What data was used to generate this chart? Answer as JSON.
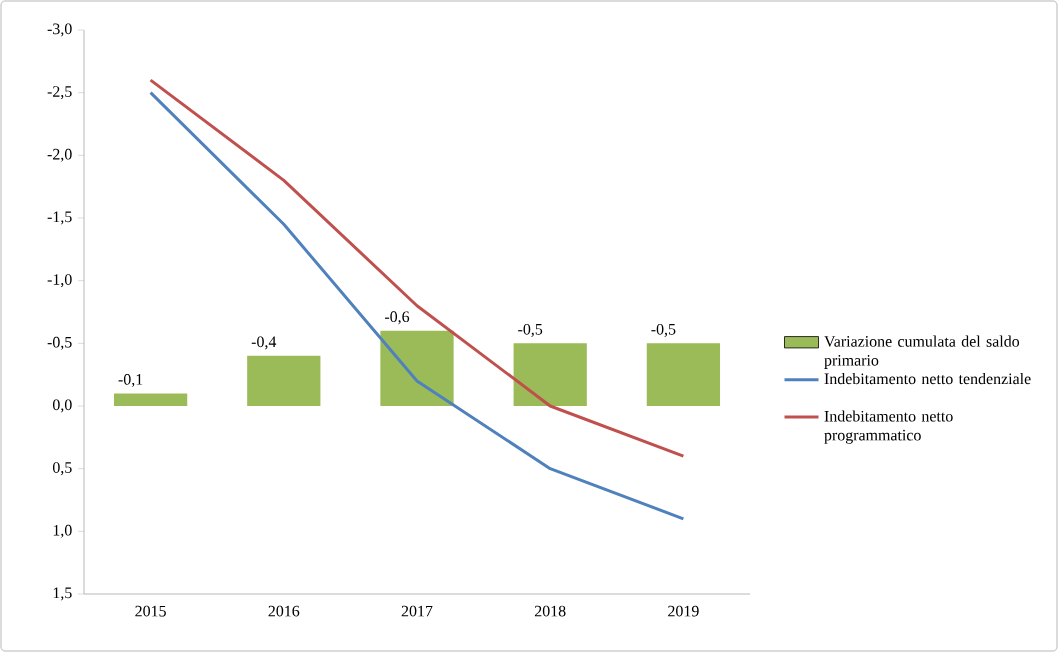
{
  "chart_data": {
    "type": "bar",
    "categories": [
      "2015",
      "2016",
      "2017",
      "2018",
      "2019"
    ],
    "series": [
      {
        "name": "Variazione cumulata del saldo primario",
        "color": "#9bbb59",
        "values": [
          -0.1,
          -0.4,
          -0.6,
          -0.5,
          -0.5
        ],
        "value_labels": [
          "-0,1",
          "-0,4",
          "-0,6",
          "-0,5",
          "-0,5"
        ]
      },
      {
        "name": "Indebitamento netto tendenziale",
        "type": "line",
        "color": "#4f81bd",
        "values": [
          -2.5,
          -1.45,
          -0.2,
          0.5,
          0.9
        ]
      },
      {
        "name": "Indebitamento netto programmatico",
        "type": "line",
        "color": "#c0504d",
        "values": [
          -2.6,
          -1.8,
          -0.8,
          0.0,
          0.4
        ]
      }
    ],
    "ylim": [
      1.5,
      -3.0
    ],
    "yticks": [
      {
        "value": -3.0,
        "label": "-3,0"
      },
      {
        "value": -2.5,
        "label": "-2,5"
      },
      {
        "value": -2.0,
        "label": "-2,0"
      },
      {
        "value": -1.5,
        "label": "-1,5"
      },
      {
        "value": -1.0,
        "label": "-1,0"
      },
      {
        "value": -0.5,
        "label": "-0,5"
      },
      {
        "value": 0.0,
        "label": "0,0"
      },
      {
        "value": 0.5,
        "label": "0,5"
      },
      {
        "value": 1.0,
        "label": "1,0"
      },
      {
        "value": 1.5,
        "label": "1,5"
      }
    ],
    "legend": "right",
    "marker": "none",
    "line_style": "solid"
  }
}
